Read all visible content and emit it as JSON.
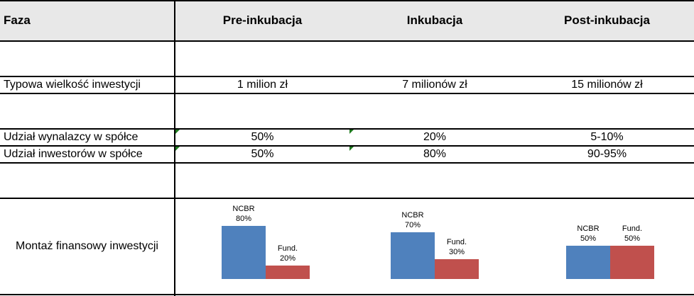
{
  "header": {
    "phase_label": "Faza",
    "columns": [
      "Pre-inkubacja",
      "Inkubacja",
      "Post-inkubacja"
    ]
  },
  "rows": {
    "investment_size": {
      "label": "Typowa wielkość inwestycji",
      "values": [
        "1 milion zł",
        "7 milionów zł",
        "15 milionów zł"
      ]
    },
    "inventor_share": {
      "label": "Udział wynalazcy w spółce",
      "values": [
        "50%",
        "20%",
        "5-10%"
      ]
    },
    "investor_share": {
      "label": "Udział inwestorów w spółce",
      "values": [
        "50%",
        "80%",
        "90-95%"
      ]
    },
    "financing": {
      "label": "Montaż finansowy inwestycji"
    }
  },
  "colors": {
    "ncbr": "#4f81bd",
    "fund": "#c0504d",
    "header_bg": "#e8e8e8",
    "marker": "#1f7a1f"
  },
  "chart_data": [
    {
      "type": "bar",
      "categories": [
        "NCBR",
        "Fund."
      ],
      "values": [
        80,
        20
      ],
      "labels": [
        {
          "name": "NCBR",
          "pct": "80%"
        },
        {
          "name": "Fund.",
          "pct": "20%"
        }
      ]
    },
    {
      "type": "bar",
      "categories": [
        "NCBR",
        "Fund."
      ],
      "values": [
        70,
        30
      ],
      "labels": [
        {
          "name": "NCBR",
          "pct": "70%"
        },
        {
          "name": "Fund.",
          "pct": "30%"
        }
      ]
    },
    {
      "type": "bar",
      "categories": [
        "NCBR",
        "Fund."
      ],
      "values": [
        50,
        50
      ],
      "labels": [
        {
          "name": "NCBR",
          "pct": "50%"
        },
        {
          "name": "Fund.",
          "pct": "50%"
        }
      ]
    }
  ]
}
